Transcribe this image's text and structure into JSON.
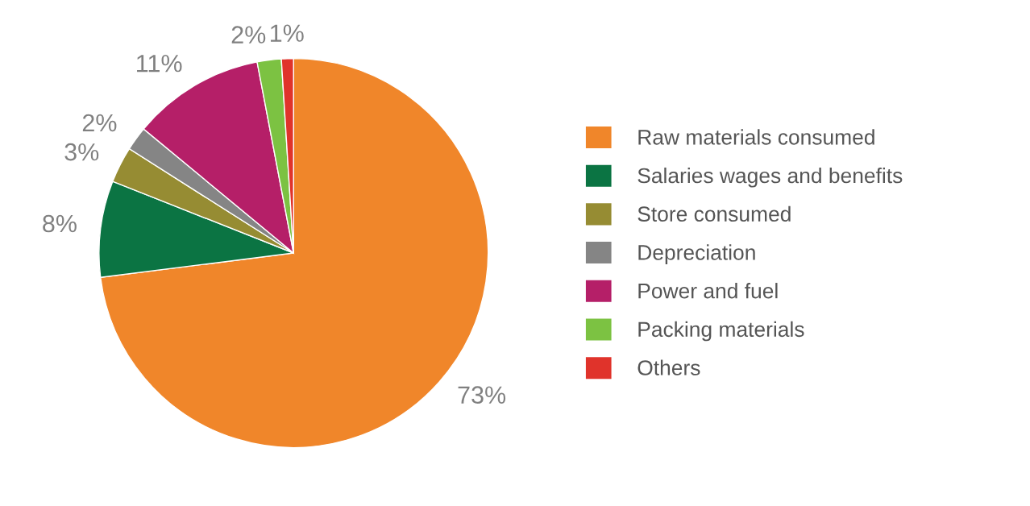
{
  "chart_data": {
    "type": "pie",
    "categories": [
      "Raw materials consumed",
      "Salaries wages and benefits",
      "Store consumed",
      "Depreciation",
      "Power and fuel",
      "Packing materials",
      "Others"
    ],
    "values": [
      73,
      8,
      3,
      2,
      11,
      2,
      1
    ],
    "colors": [
      "#f0862a",
      "#0b7443",
      "#968c33",
      "#858585",
      "#b51f68",
      "#7cc242",
      "#e0332b"
    ],
    "value_labels": [
      "73%",
      "8%",
      "3%",
      "2%",
      "11%",
      "2%",
      "1%"
    ],
    "legend": "right"
  }
}
